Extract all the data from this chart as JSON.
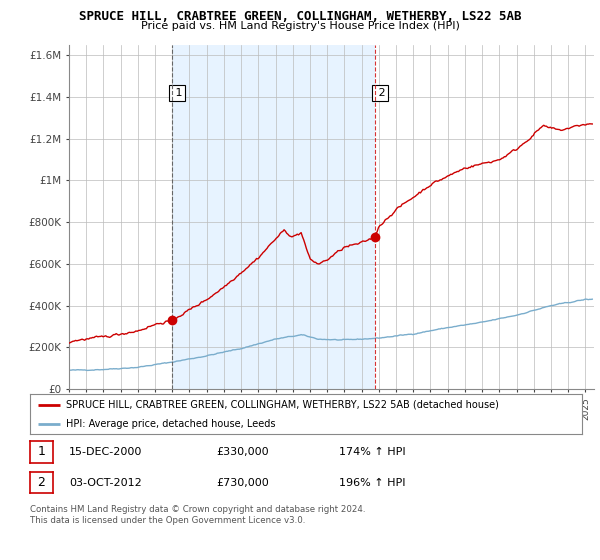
{
  "title": "SPRUCE HILL, CRABTREE GREEN, COLLINGHAM, WETHERBY, LS22 5AB",
  "subtitle": "Price paid vs. HM Land Registry's House Price Index (HPI)",
  "ylim": [
    0,
    1650000
  ],
  "yticks": [
    0,
    200000,
    400000,
    600000,
    800000,
    1000000,
    1200000,
    1400000,
    1600000
  ],
  "ytick_labels": [
    "£0",
    "£200K",
    "£400K",
    "£600K",
    "£800K",
    "£1M",
    "£1.2M",
    "£1.4M",
    "£1.6M"
  ],
  "xlim_start": 1995.0,
  "xlim_end": 2025.5,
  "red_line_color": "#cc0000",
  "blue_line_color": "#7aadcc",
  "shade_color": "#ddeeff",
  "marker1_date": 2000.96,
  "marker1_value": 330000,
  "marker2_date": 2012.75,
  "marker2_value": 730000,
  "vline1_x": 2000.96,
  "vline2_x": 2012.75,
  "legend_label_red": "SPRUCE HILL, CRABTREE GREEN, COLLINGHAM, WETHERBY, LS22 5AB (detached house)",
  "legend_label_blue": "HPI: Average price, detached house, Leeds",
  "table_row1": [
    "1",
    "15-DEC-2000",
    "£330,000",
    "174% ↑ HPI"
  ],
  "table_row2": [
    "2",
    "03-OCT-2012",
    "£730,000",
    "196% ↑ HPI"
  ],
  "footnote": "Contains HM Land Registry data © Crown copyright and database right 2024.\nThis data is licensed under the Open Government Licence v3.0.",
  "bg_color": "#ffffff",
  "grid_color": "#bbbbbb",
  "title_fontsize": 9,
  "subtitle_fontsize": 8
}
